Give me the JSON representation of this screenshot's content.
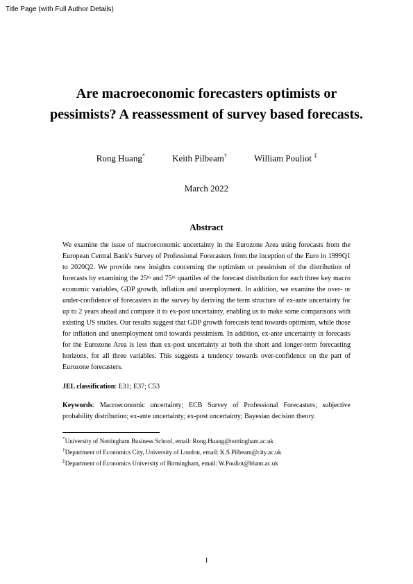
{
  "header_label": "Title Page (with Full Author Details)",
  "title": "Are macroeconomic forecasters optimists or pessimists? A reassessment of survey based forecasts.",
  "authors": [
    {
      "name": "Rong Huang",
      "mark": "*"
    },
    {
      "name": "Keith Pilbeam",
      "mark": "†"
    },
    {
      "name": "William Pouliot",
      "mark": "‡"
    }
  ],
  "date": "March 2022",
  "abstract_heading": "Abstract",
  "abstract": "We examine the issue of macroeconomic uncertainty in the Eurozone Area using forecasts from the European Central Bank's Survey of Professional Forecasters from the inception of the Euro in 1999Q1 to 2020Q2. We provide new insights concerning the optimism or pessimism of the distribution of forecasts by examining the 25ᵗʰ and 75ᵗʰ quartiles of the forecast distribution for each three key macro economic variables, GDP growth, inflation and unemployment. In addition, we examine the over- or under-confidence of forecasters in the survey by deriving the term structure of ex-ante uncertainty for up to 2 years ahead and compare it to ex-post uncertainty, enabling us to make some comparisons with existing US studies. Our results suggest that GDP growth forecasts tend towards optimism, while those for inflation and unemployment tend towards pessimism. In addition, ex-ante uncertainty in forecasts for the Eurozone Area is less than ex-post uncertainty at both the short and longer-term forecasting horizons, for all three variables. This suggests a tendency towards over-confidence on the part of Eurozone forecasters.",
  "jel_label": "JEL classification",
  "jel_codes": ": E31; E37; C53",
  "keywords_label": "Keywords",
  "keywords_text": ": Macroeconomic uncertainty; ECB Survey of Professional Forecasters; subjective probability distribution; ex-ante uncertainty; ex-post uncertainty; Bayesian decision theory.",
  "footnotes": [
    {
      "mark": "*",
      "text": "University of Nottingham Business School, email: Rong.Huang@nottingham.ac.uk"
    },
    {
      "mark": "†",
      "text": "Department of Economics City, University of London, email: K.S.Pilbeam@city.ac.uk"
    },
    {
      "mark": "‡",
      "text": "Department of Economics University of Birmingham, email: W.Pouliot@bham.ac.uk"
    }
  ],
  "page_number": "1"
}
